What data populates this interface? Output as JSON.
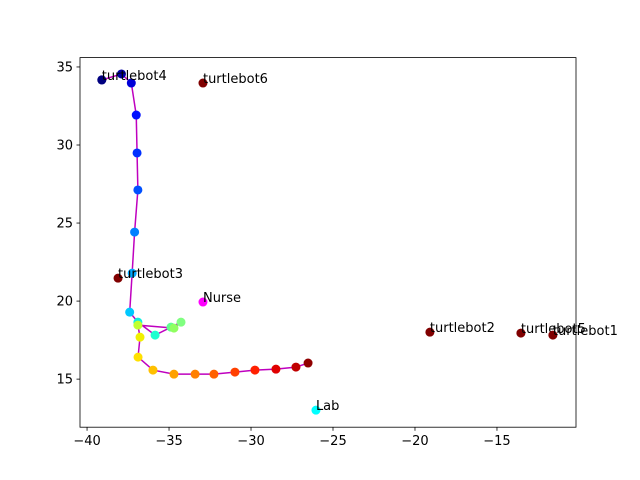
{
  "chart_data": {
    "type": "scatter",
    "xlim": [
      -40.43,
      -10.18
    ],
    "ylim": [
      11.92,
      35.6
    ],
    "xticks": [
      {
        "value": -40,
        "label": "−40"
      },
      {
        "value": -35,
        "label": "−35"
      },
      {
        "value": -30,
        "label": "−30"
      },
      {
        "value": -25,
        "label": "−25"
      },
      {
        "value": -20,
        "label": "−20"
      },
      {
        "value": -15,
        "label": "−15"
      }
    ],
    "yticks": [
      15,
      20,
      25,
      30,
      35
    ],
    "grid": false,
    "series": [
      {
        "color": "#bf00bf",
        "x": [
          -39.1,
          -37.9,
          -37.3,
          -37.0,
          -36.95,
          -36.9,
          -37.1,
          -37.25,
          -37.4,
          -36.9,
          -35.85,
          -34.88,
          -34.27,
          -34.7,
          -36.9,
          -36.77,
          -36.89,
          -35.98,
          -34.7,
          -33.41,
          -32.26,
          -30.98,
          -29.76,
          -28.48,
          -27.26,
          -26.52
        ],
        "y": [
          34.17,
          34.55,
          33.97,
          31.92,
          29.49,
          27.12,
          24.42,
          21.79,
          19.29,
          18.65,
          17.82,
          18.33,
          18.65,
          18.27,
          18.46,
          17.69,
          16.41,
          15.58,
          15.32,
          15.32,
          15.32,
          15.45,
          15.58,
          15.64,
          15.77,
          16.03
        ],
        "point_colors": [
          "#000080",
          "#0000a8",
          "#0000d8",
          "#0010ff",
          "#0030ff",
          "#0050ff",
          "#0080ff",
          "#00a8ff",
          "#00c8ff",
          "#10f0e0",
          "#20ffd0",
          "#60ff90",
          "#80ff80",
          "#90ff60",
          "#c0ff30",
          "#f0f000",
          "#ffe000",
          "#ffc000",
          "#ffa000",
          "#ff8000",
          "#ff6000",
          "#ff4000",
          "#ff2000",
          "#e00000",
          "#c00000",
          "#900000"
        ]
      }
    ],
    "annotations": [
      {
        "text": "turtlebot4",
        "x": -39.1,
        "y": 34.17,
        "color": "#000080"
      },
      {
        "text": "turtlebot6",
        "x": -32.93,
        "y": 33.97,
        "color": "#800000"
      },
      {
        "text": "turtlebot3",
        "x": -38.11,
        "y": 21.47,
        "color": "#800000"
      },
      {
        "text": "Nurse",
        "x": -32.93,
        "y": 19.94,
        "color": "#ff00ff"
      },
      {
        "text": "turtlebot2",
        "x": -19.09,
        "y": 18.01,
        "color": "#800000"
      },
      {
        "text": "turtlebot5",
        "x": -13.54,
        "y": 17.95,
        "color": "#800000"
      },
      {
        "text": "turtlebot1",
        "x": -11.59,
        "y": 17.82,
        "color": "#800000"
      },
      {
        "text": "Lab",
        "x": -26.04,
        "y": 13.01,
        "color": "#00ffff"
      }
    ]
  }
}
